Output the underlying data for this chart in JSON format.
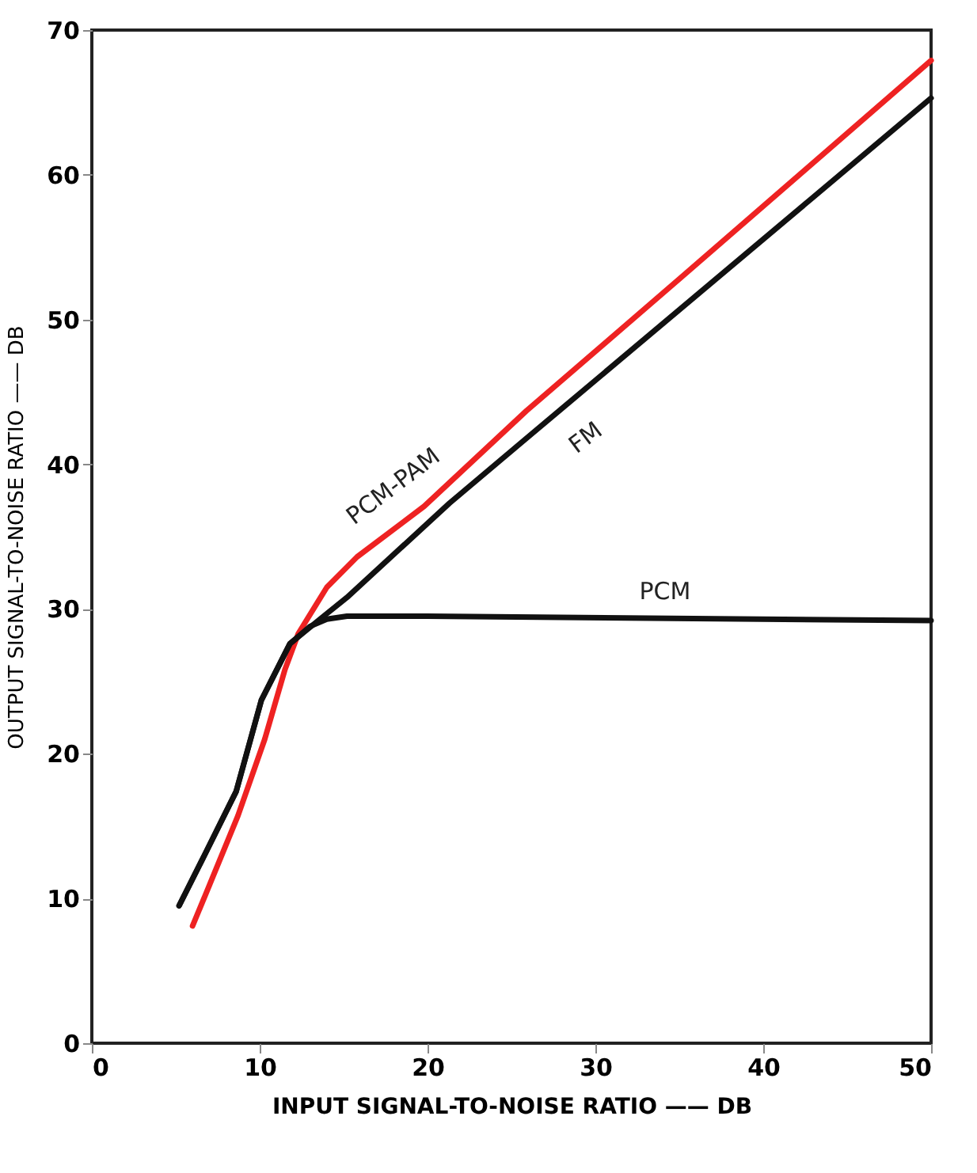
{
  "chart_data": {
    "type": "line",
    "xlabel": "INPUT SIGNAL-TO-NOISE RATIO —— DB",
    "ylabel": "OUTPUT SIGNAL-TO-NOISE RATIO —— DB",
    "xlim": [
      0,
      50
    ],
    "ylim": [
      0,
      70
    ],
    "xticks": [
      0,
      10,
      20,
      30,
      40,
      50
    ],
    "yticks": [
      0,
      10,
      20,
      30,
      40,
      50,
      60,
      70
    ],
    "grid": false,
    "marker": "none",
    "line_style": "solid",
    "series": [
      {
        "name": "PCM-PAM",
        "color": "#ee2222",
        "x": [
          6,
          7,
          8.7,
          10.3,
          11.5,
          12.3,
          14,
          15.8,
          19.8,
          25.9,
          35.1,
          50
        ],
        "values": [
          8.1,
          10.9,
          15.7,
          21,
          25.8,
          28.3,
          31.5,
          33.6,
          37.1,
          43.7,
          52.9,
          67.9
        ]
      },
      {
        "name": "FM",
        "color": "#111111",
        "x": [
          5.2,
          6.5,
          8.6,
          10.1,
          11.8,
          13.7,
          15.2,
          21.3,
          25.9,
          50
        ],
        "values": [
          9.5,
          12.5,
          17.4,
          23.7,
          27.6,
          29.4,
          30.8,
          37.3,
          41.8,
          65.3
        ]
      },
      {
        "name": "PCM",
        "color": "#111111",
        "x": [
          5.2,
          6.5,
          8.6,
          10.1,
          11.8,
          13,
          14,
          15.2,
          20,
          50
        ],
        "values": [
          9.5,
          12.5,
          17.4,
          23.7,
          27.6,
          28.8,
          29.3,
          29.5,
          29.5,
          29.2
        ]
      }
    ]
  }
}
